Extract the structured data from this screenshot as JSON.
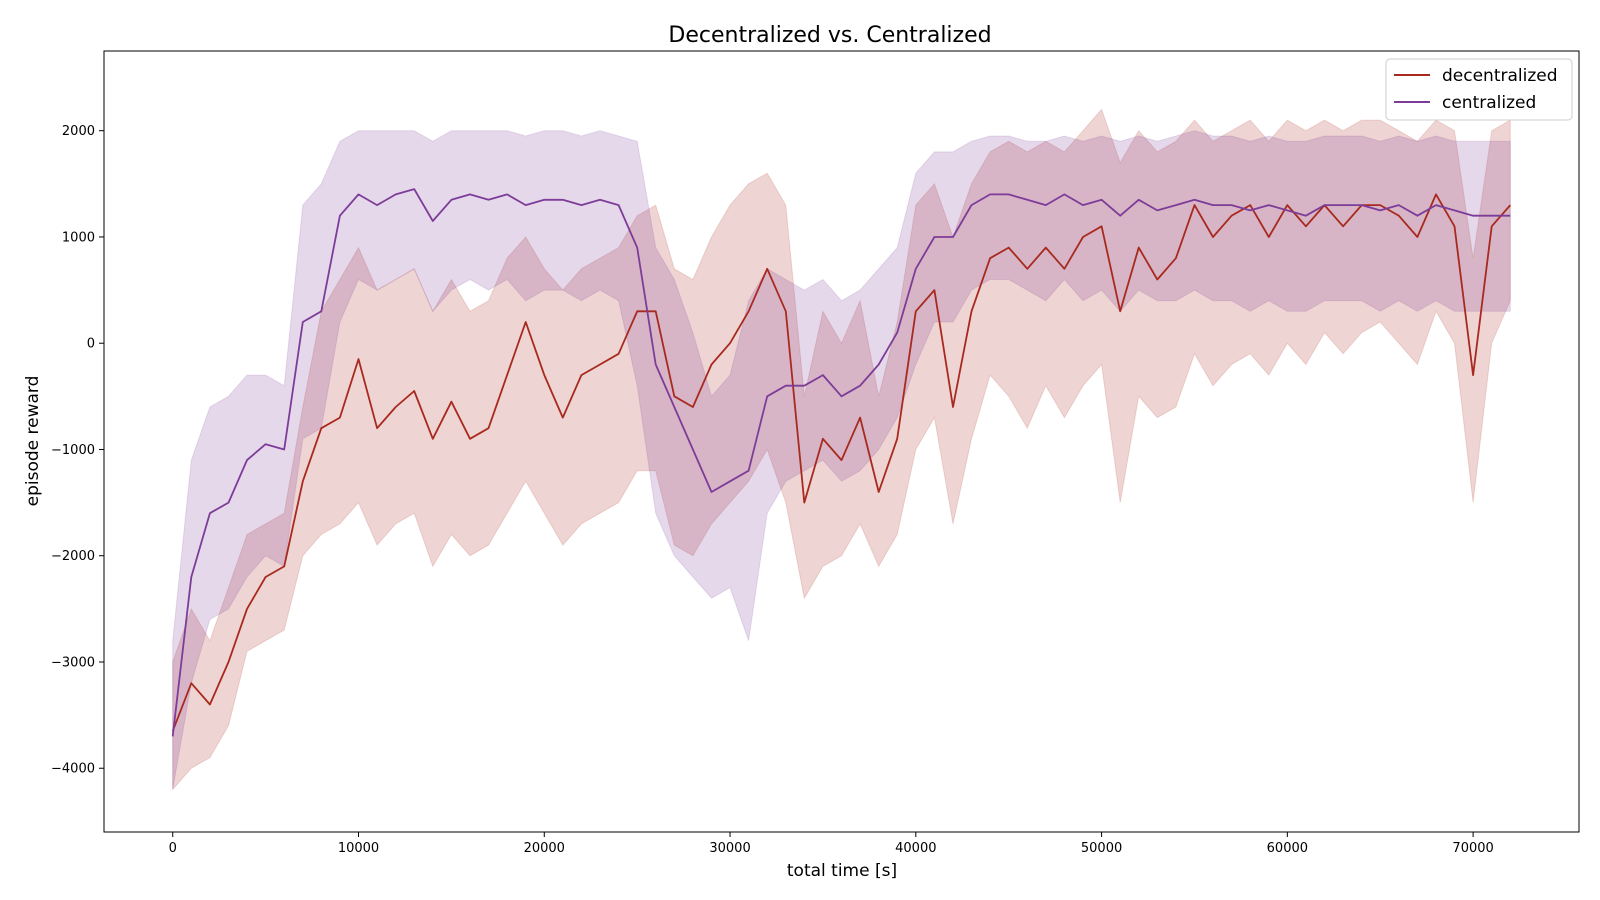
{
  "chart_data": {
    "type": "line",
    "title": "Decentralized vs. Centralized",
    "xlabel": "total time [s]",
    "ylabel": "episode reward",
    "xlim": [
      -3700,
      75700
    ],
    "ylim": [
      -4600,
      2750
    ],
    "xticks": [
      0,
      10000,
      20000,
      30000,
      40000,
      50000,
      60000,
      70000
    ],
    "yticks": [
      -4000,
      -3000,
      -2000,
      -1000,
      0,
      1000,
      2000
    ],
    "xtick_labels": [
      "0",
      "10000",
      "20000",
      "30000",
      "40000",
      "50000",
      "60000",
      "70000"
    ],
    "ytick_labels": [
      "−4000",
      "−3000",
      "−2000",
      "−1000",
      "0",
      "1000",
      "2000"
    ],
    "grid": false,
    "legend_position": "top-right",
    "series": [
      {
        "name": "decentralized",
        "color": "#a8291e",
        "x": [
          0,
          1000,
          2000,
          3000,
          4000,
          5000,
          6000,
          7000,
          8000,
          9000,
          10000,
          11000,
          12000,
          13000,
          14000,
          15000,
          16000,
          17000,
          18000,
          19000,
          20000,
          21000,
          22000,
          23000,
          24000,
          25000,
          26000,
          27000,
          28000,
          29000,
          30000,
          31000,
          32000,
          33000,
          34000,
          35000,
          36000,
          37000,
          38000,
          39000,
          40000,
          41000,
          42000,
          43000,
          44000,
          45000,
          46000,
          47000,
          48000,
          49000,
          50000,
          51000,
          52000,
          53000,
          54000,
          55000,
          56000,
          57000,
          58000,
          59000,
          60000,
          61000,
          62000,
          63000,
          64000,
          65000,
          66000,
          67000,
          68000,
          69000,
          70000,
          71000,
          72000
        ],
        "y": [
          -3650,
          -3200,
          -3400,
          -3000,
          -2500,
          -2200,
          -2100,
          -1300,
          -800,
          -700,
          -150,
          -800,
          -600,
          -450,
          -900,
          -550,
          -900,
          -800,
          -300,
          200,
          -300,
          -700,
          -300,
          -200,
          -100,
          300,
          300,
          -500,
          -600,
          -200,
          0,
          300,
          700,
          300,
          -1500,
          -900,
          -1100,
          -700,
          -1400,
          -900,
          300,
          500,
          -600,
          300,
          800,
          900,
          700,
          900,
          700,
          1000,
          1100,
          300,
          900,
          600,
          800,
          1300,
          1000,
          1200,
          1300,
          1000,
          1300,
          1100,
          1300,
          1100,
          1300,
          1300,
          1200,
          1000,
          1400,
          1100,
          -300,
          1100,
          1300
        ],
        "lower": [
          -4200,
          -4000,
          -3900,
          -3600,
          -2900,
          -2800,
          -2700,
          -2000,
          -1800,
          -1700,
          -1500,
          -1900,
          -1700,
          -1600,
          -2100,
          -1800,
          -2000,
          -1900,
          -1600,
          -1300,
          -1600,
          -1900,
          -1700,
          -1600,
          -1500,
          -1200,
          -1200,
          -1900,
          -2000,
          -1700,
          -1500,
          -1300,
          -1000,
          -1500,
          -2400,
          -2100,
          -2000,
          -1700,
          -2100,
          -1800,
          -1000,
          -700,
          -1700,
          -900,
          -300,
          -500,
          -800,
          -400,
          -700,
          -400,
          -200,
          -1500,
          -500,
          -700,
          -600,
          -100,
          -400,
          -200,
          -100,
          -300,
          0,
          -200,
          100,
          -100,
          100,
          200,
          0,
          -200,
          300,
          0,
          -1500,
          0,
          400
        ],
        "upper": [
          -3000,
          -2500,
          -2800,
          -2300,
          -1800,
          -1700,
          -1600,
          -600,
          300,
          600,
          900,
          500,
          600,
          700,
          300,
          600,
          300,
          400,
          800,
          1000,
          700,
          500,
          700,
          800,
          900,
          1200,
          1300,
          700,
          600,
          1000,
          1300,
          1500,
          1600,
          1300,
          -500,
          300,
          0,
          400,
          -500,
          200,
          1300,
          1500,
          1000,
          1500,
          1800,
          1900,
          1800,
          1900,
          1800,
          2000,
          2200,
          1700,
          2000,
          1800,
          1900,
          2100,
          1900,
          2000,
          2100,
          1900,
          2100,
          2000,
          2100,
          2000,
          2100,
          2100,
          2000,
          1900,
          2100,
          2000,
          800,
          2000,
          2100
        ]
      },
      {
        "name": "centralized",
        "color": "#7d3c98",
        "x": [
          0,
          1000,
          2000,
          3000,
          4000,
          5000,
          6000,
          7000,
          8000,
          9000,
          10000,
          11000,
          12000,
          13000,
          14000,
          15000,
          16000,
          17000,
          18000,
          19000,
          20000,
          21000,
          22000,
          23000,
          24000,
          25000,
          26000,
          27000,
          28000,
          29000,
          30000,
          31000,
          32000,
          33000,
          34000,
          35000,
          36000,
          37000,
          38000,
          39000,
          40000,
          41000,
          42000,
          43000,
          44000,
          45000,
          46000,
          47000,
          48000,
          49000,
          50000,
          51000,
          52000,
          53000,
          54000,
          55000,
          56000,
          57000,
          58000,
          59000,
          60000,
          61000,
          62000,
          63000,
          64000,
          65000,
          66000,
          67000,
          68000,
          69000,
          70000,
          71000,
          72000
        ],
        "y": [
          -3700,
          -2200,
          -1600,
          -1500,
          -1100,
          -950,
          -1000,
          200,
          300,
          1200,
          1400,
          1300,
          1400,
          1450,
          1150,
          1350,
          1400,
          1350,
          1400,
          1300,
          1350,
          1350,
          1300,
          1350,
          1300,
          900,
          -200,
          -600,
          -1000,
          -1400,
          -1300,
          -1200,
          -500,
          -400,
          -400,
          -300,
          -500,
          -400,
          -200,
          100,
          700,
          1000,
          1000,
          1300,
          1400,
          1400,
          1350,
          1300,
          1400,
          1300,
          1350,
          1200,
          1350,
          1250,
          1300,
          1350,
          1300,
          1300,
          1250,
          1300,
          1250,
          1200,
          1300,
          1300,
          1300,
          1250,
          1300,
          1200,
          1300,
          1250,
          1200,
          1200,
          1200
        ],
        "lower": [
          -4200,
          -3200,
          -2600,
          -2500,
          -2200,
          -2000,
          -2100,
          -900,
          -800,
          200,
          600,
          500,
          600,
          700,
          300,
          500,
          600,
          500,
          600,
          400,
          500,
          500,
          400,
          500,
          400,
          -400,
          -1600,
          -2000,
          -2200,
          -2400,
          -2300,
          -2800,
          -1600,
          -1300,
          -1200,
          -1100,
          -1300,
          -1200,
          -1000,
          -700,
          -200,
          200,
          200,
          500,
          600,
          600,
          500,
          400,
          600,
          400,
          500,
          300,
          500,
          400,
          400,
          500,
          400,
          400,
          300,
          400,
          300,
          300,
          400,
          400,
          400,
          300,
          400,
          300,
          400,
          300,
          300,
          300,
          300
        ],
        "upper": [
          -2800,
          -1100,
          -600,
          -500,
          -300,
          -300,
          -400,
          1300,
          1500,
          1900,
          2000,
          2000,
          2000,
          2000,
          1900,
          2000,
          2000,
          2000,
          2000,
          1950,
          2000,
          2000,
          1950,
          2000,
          1950,
          1900,
          900,
          600,
          100,
          -500,
          -300,
          400,
          700,
          600,
          500,
          600,
          400,
          500,
          700,
          900,
          1600,
          1800,
          1800,
          1900,
          1950,
          1950,
          1900,
          1900,
          1950,
          1900,
          1950,
          1900,
          1950,
          1900,
          1950,
          2000,
          1950,
          1950,
          1900,
          1950,
          1900,
          1900,
          1950,
          1950,
          1950,
          1900,
          1950,
          1900,
          1950,
          1900,
          1900,
          1900,
          1900
        ]
      }
    ]
  }
}
